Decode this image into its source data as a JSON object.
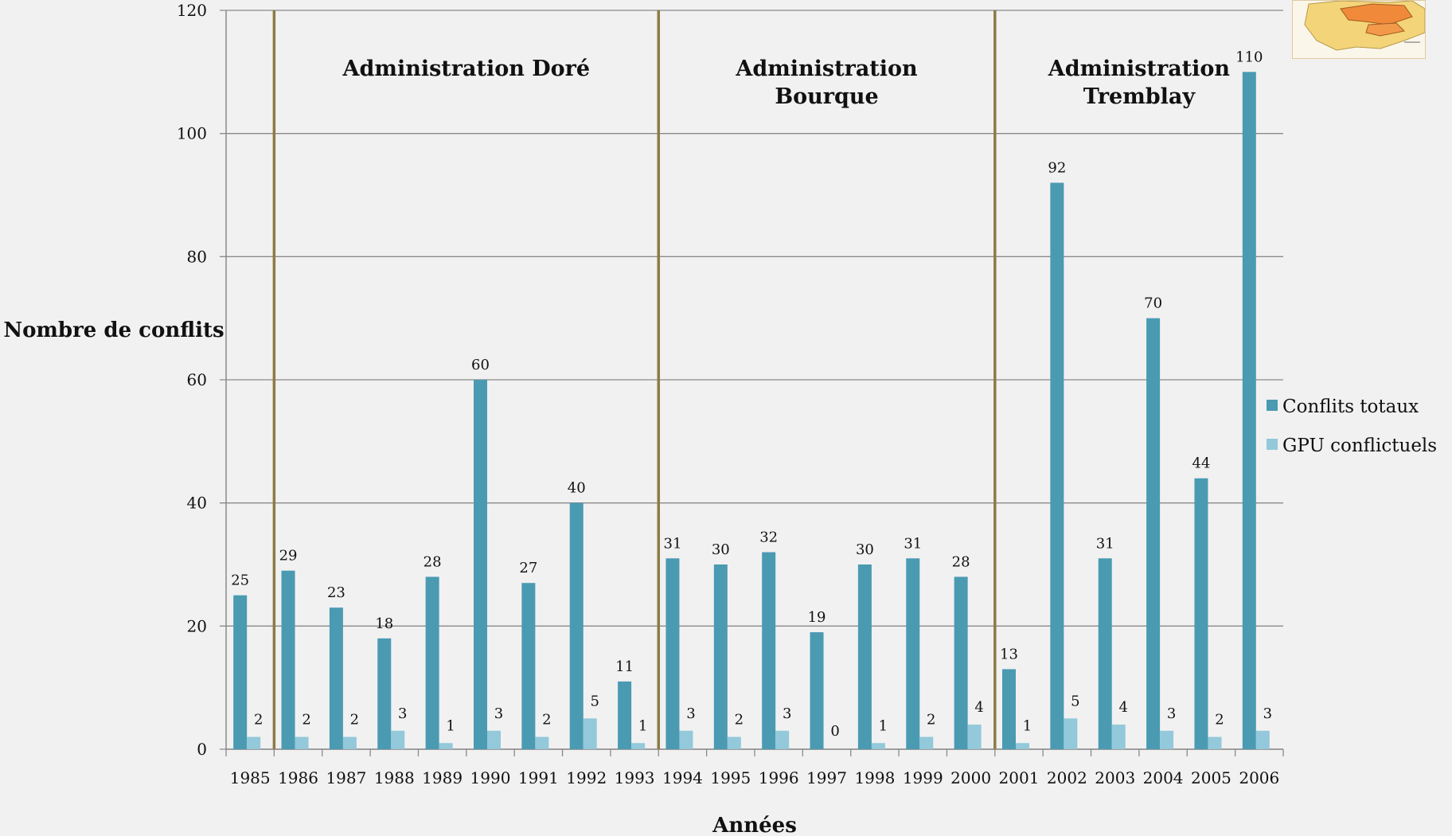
{
  "chart_data": {
    "type": "bar",
    "title": "",
    "xlabel": "Années",
    "ylabel": "Nombre de conflits",
    "ylim": [
      0,
      120
    ],
    "yticks": [
      0,
      20,
      40,
      60,
      80,
      100,
      120
    ],
    "categories": [
      "1985",
      "1986",
      "1987",
      "1988",
      "1989",
      "1990",
      "1991",
      "1992",
      "1993",
      "1994",
      "1995",
      "1996",
      "1997",
      "1998",
      "1999",
      "2000",
      "2001",
      "2002",
      "2003",
      "2004",
      "2005",
      "2006"
    ],
    "series": [
      {
        "name": "Conflits totaux",
        "color": "#4a9ab2",
        "values": [
          25,
          29,
          23,
          18,
          28,
          60,
          27,
          40,
          11,
          31,
          30,
          32,
          19,
          30,
          31,
          28,
          13,
          92,
          31,
          70,
          44,
          110
        ]
      },
      {
        "name": "GPU conflictuels",
        "color": "#93c9da",
        "values": [
          2,
          2,
          2,
          3,
          1,
          3,
          2,
          5,
          1,
          3,
          2,
          3,
          0,
          1,
          2,
          4,
          1,
          5,
          4,
          3,
          2,
          3
        ]
      }
    ],
    "grid": true,
    "legend_position": "right",
    "administrations": [
      {
        "lines": [
          "Administration Doré"
        ],
        "from": "1986",
        "to": "1993"
      },
      {
        "lines": [
          "Administration",
          "Bourque"
        ],
        "from": "1994",
        "to": "2000"
      },
      {
        "lines": [
          "Administration",
          "Tremblay"
        ],
        "from": "2001",
        "to": "2006"
      }
    ],
    "separator_color": "#8c7b45"
  }
}
